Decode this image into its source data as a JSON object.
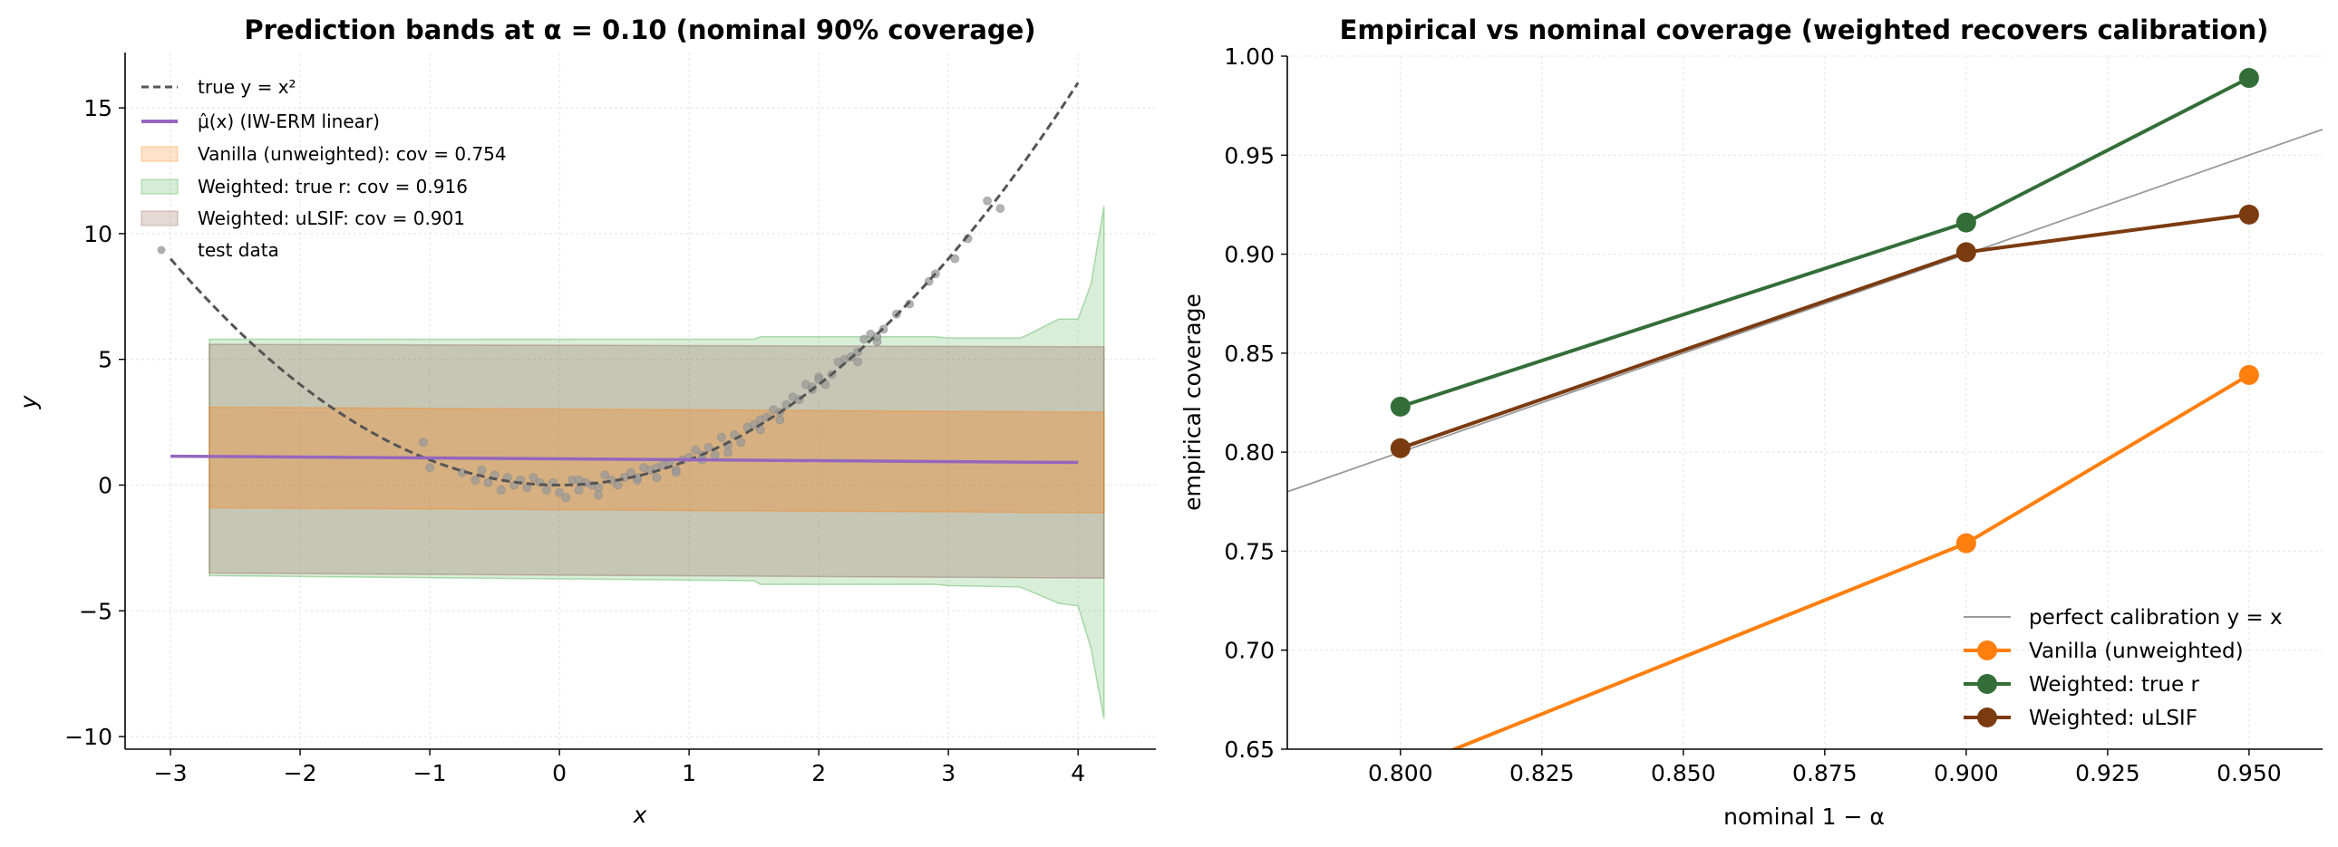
{
  "chart_data": [
    {
      "type": "line",
      "title": "Prediction bands at α = 0.10 (nominal 90% coverage)",
      "xlabel": "x",
      "ylabel": "y",
      "xlim": [
        -3.35,
        4.6
      ],
      "ylim": [
        -10.5,
        17.2
      ],
      "xticks": [
        -3,
        -2,
        -1,
        0,
        1,
        2,
        3,
        4
      ],
      "yticks": [
        -10,
        -5,
        0,
        5,
        10,
        15
      ],
      "grid": true,
      "legend_position": "top-left",
      "legend": [
        {
          "key": "true",
          "text": "true y = x²"
        },
        {
          "key": "mu",
          "text": "μ̂(x) (IW-ERM linear)"
        },
        {
          "key": "vanilla",
          "text": "Vanilla (unweighted): cov  = 0.754"
        },
        {
          "key": "truer",
          "text": "Weighted: true r: cov  = 0.916"
        },
        {
          "key": "ulsif",
          "text": "Weighted: uLSIF: cov  = 0.901"
        },
        {
          "key": "test",
          "text": "test data"
        }
      ],
      "colors": {
        "true": "#555555",
        "mu": "#9467bd",
        "vanilla": "#ff7f0e",
        "truer": "#2ca02c",
        "ulsif": "#8c564b",
        "test": "#999999"
      },
      "series": [
        {
          "key": "true",
          "x_range": [
            -3,
            4
          ],
          "function": "x^2"
        },
        {
          "key": "mu",
          "x": [
            -3,
            4
          ],
          "y": [
            1.15,
            0.9
          ]
        }
      ],
      "bands": [
        {
          "key": "truer",
          "x": [
            -2.7,
            1.5,
            1.55,
            2.9,
            3.0,
            3.55,
            3.6,
            3.85,
            4.0,
            4.1,
            4.2
          ],
          "lower": [
            -3.6,
            -3.8,
            -3.95,
            -3.95,
            -4.0,
            -4.05,
            -4.15,
            -4.7,
            -4.8,
            -6.5,
            -9.3
          ],
          "upper": [
            5.8,
            5.8,
            5.9,
            5.9,
            5.85,
            5.85,
            5.95,
            6.6,
            6.6,
            8.0,
            11.1
          ]
        },
        {
          "key": "ulsif",
          "x": [
            -2.7,
            4.2
          ],
          "lower": [
            -3.5,
            -3.7
          ],
          "upper": [
            5.6,
            5.5
          ]
        },
        {
          "key": "vanilla",
          "x": [
            -2.7,
            4.2
          ],
          "lower": [
            -0.9,
            -1.1
          ],
          "upper": [
            3.1,
            2.9
          ]
        }
      ],
      "test_data": {
        "x": [
          -1.05,
          -1.0,
          -0.75,
          -0.65,
          -0.6,
          -0.5,
          -0.45,
          -0.4,
          -0.35,
          -0.3,
          -0.25,
          -0.2,
          -0.15,
          -0.1,
          -0.05,
          0.0,
          0.05,
          0.1,
          0.15,
          0.2,
          0.25,
          0.3,
          0.35,
          0.4,
          0.45,
          0.5,
          0.55,
          0.6,
          0.65,
          0.7,
          0.75,
          0.8,
          0.85,
          0.9,
          0.95,
          1.0,
          1.05,
          1.1,
          1.15,
          1.2,
          1.25,
          1.3,
          1.35,
          1.4,
          1.45,
          1.5,
          1.55,
          1.6,
          1.65,
          1.7,
          1.75,
          1.8,
          1.85,
          1.9,
          1.95,
          2.0,
          2.05,
          2.1,
          2.15,
          2.2,
          2.25,
          2.3,
          2.35,
          2.4,
          2.45,
          2.5,
          2.6,
          2.7,
          2.85,
          2.9,
          3.05,
          3.15,
          3.3,
          3.4,
          0.3,
          0.6,
          0.9,
          1.3,
          1.7,
          2.0,
          2.3,
          -0.55,
          0.15,
          0.75,
          1.1,
          1.55,
          1.95,
          2.45
        ],
        "y": [
          1.7,
          0.7,
          0.5,
          0.2,
          0.6,
          0.4,
          -0.2,
          0.3,
          0.0,
          0.2,
          -0.1,
          0.3,
          0.1,
          -0.2,
          0.1,
          -0.3,
          -0.5,
          0.2,
          -0.2,
          0.1,
          0.0,
          -0.1,
          0.4,
          0.2,
          0.0,
          0.3,
          0.5,
          0.2,
          0.7,
          0.6,
          0.3,
          0.8,
          0.9,
          0.6,
          1.0,
          1.1,
          1.4,
          1.0,
          1.5,
          1.2,
          1.9,
          1.6,
          2.0,
          1.7,
          2.3,
          2.4,
          2.6,
          2.7,
          3.0,
          2.9,
          3.2,
          3.5,
          3.4,
          4.0,
          3.8,
          4.3,
          4.0,
          4.4,
          4.9,
          5.0,
          5.1,
          5.3,
          5.8,
          6.0,
          5.7,
          6.2,
          6.8,
          7.2,
          8.1,
          8.4,
          9.0,
          9.8,
          11.3,
          11.0,
          -0.4,
          0.3,
          0.5,
          1.3,
          2.6,
          4.2,
          4.9,
          0.1,
          0.2,
          0.7,
          1.2,
          2.2,
          3.9,
          5.9
        ]
      }
    },
    {
      "type": "line",
      "title": "Empirical vs nominal coverage  (weighted recovers calibration)",
      "xlabel": "nominal 1 − α",
      "ylabel": "empirical coverage",
      "xlim": [
        0.78,
        0.963
      ],
      "ylim": [
        0.65,
        1.0
      ],
      "xticks": [
        0.8,
        0.825,
        0.85,
        0.875,
        0.9,
        0.925,
        0.95
      ],
      "xtick_labels": [
        "0.800",
        "0.825",
        "0.850",
        "0.875",
        "0.900",
        "0.925",
        "0.950"
      ],
      "yticks": [
        0.65,
        0.7,
        0.75,
        0.8,
        0.85,
        0.9,
        0.95,
        1.0
      ],
      "ytick_labels": [
        "0.65",
        "0.70",
        "0.75",
        "0.80",
        "0.85",
        "0.90",
        "0.95",
        "1.00"
      ],
      "grid": true,
      "legend_position": "bottom-right",
      "x": [
        0.8,
        0.9,
        0.95
      ],
      "reference_line": {
        "name": "perfect calibration y = x",
        "color": "#999999"
      },
      "series": [
        {
          "name": "Vanilla (unweighted)",
          "color": "#ff7f0e",
          "values": [
            0.639,
            0.754,
            0.839
          ]
        },
        {
          "name": "Weighted: true r",
          "color": "#336e38",
          "values": [
            0.823,
            0.916,
            0.989
          ]
        },
        {
          "name": "Weighted: uLSIF",
          "color": "#7b3b10",
          "values": [
            0.802,
            0.901,
            0.92
          ]
        }
      ]
    }
  ]
}
